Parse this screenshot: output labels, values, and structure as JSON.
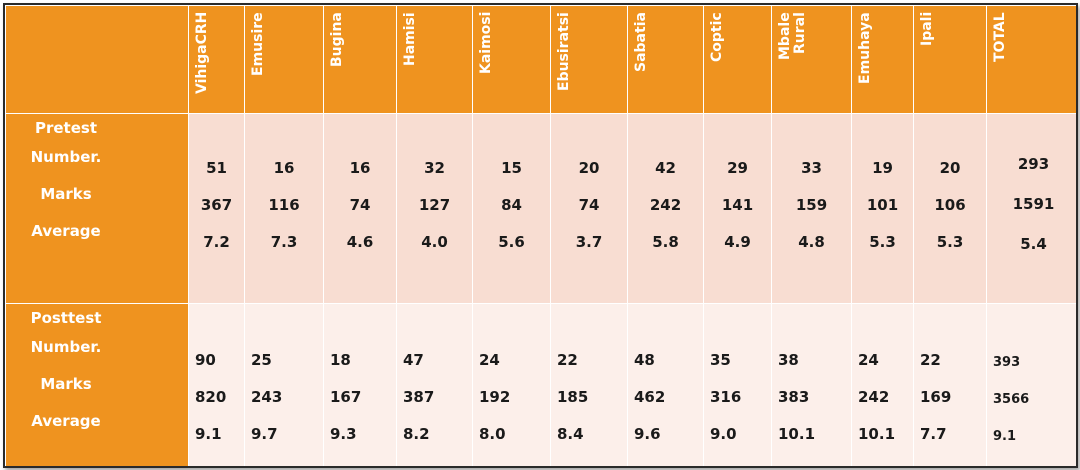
{
  "table": {
    "columns": [
      "VihigaCRH",
      "Emusire",
      "Bugina",
      "Hamisi",
      "Kaimosi",
      "Ebusiratsi",
      "Sabatia",
      "Coptic",
      "Mbale\nRural",
      "Emuhaya",
      "Ipali",
      "TOTAL"
    ],
    "pretest": {
      "label": "Pretest",
      "metrics": [
        "Number.",
        "Marks",
        "Average"
      ],
      "values": [
        [
          "51",
          "367",
          "7.2"
        ],
        [
          "16",
          "116",
          "7.3"
        ],
        [
          "16",
          "74",
          "4.6"
        ],
        [
          "32",
          "127",
          "4.0"
        ],
        [
          "15",
          "84",
          "5.6"
        ],
        [
          "20",
          "74",
          "3.7"
        ],
        [
          "42",
          "242",
          "5.8"
        ],
        [
          "29",
          "141",
          "4.9"
        ],
        [
          "33",
          "159",
          "4.8"
        ],
        [
          "19",
          "101",
          "5.3"
        ],
        [
          "20",
          "106",
          "5.3"
        ],
        [
          "293",
          "1591",
          "5.4"
        ]
      ]
    },
    "posttest": {
      "label": "Posttest",
      "metrics": [
        "Number.",
        "Marks",
        "Average"
      ],
      "values": [
        [
          "90",
          "820",
          "9.1"
        ],
        [
          "25",
          "243",
          "9.7"
        ],
        [
          "18",
          "167",
          "9.3"
        ],
        [
          "47",
          "387",
          "8.2"
        ],
        [
          "24",
          "192",
          "8.0"
        ],
        [
          "22",
          "185",
          "8.4"
        ],
        [
          "48",
          "462",
          "9.6"
        ],
        [
          "35",
          "316",
          "9.0"
        ],
        [
          "38",
          "383",
          "10.1"
        ],
        [
          "24",
          "242",
          "10.1"
        ],
        [
          "22",
          "169",
          "7.7"
        ],
        [
          "393",
          "3566",
          "9.1"
        ]
      ]
    }
  },
  "colors": {
    "header_orange": "#ef931f",
    "pretest_fill": "#f8ddd2",
    "posttest_fill": "#fcefea"
  }
}
